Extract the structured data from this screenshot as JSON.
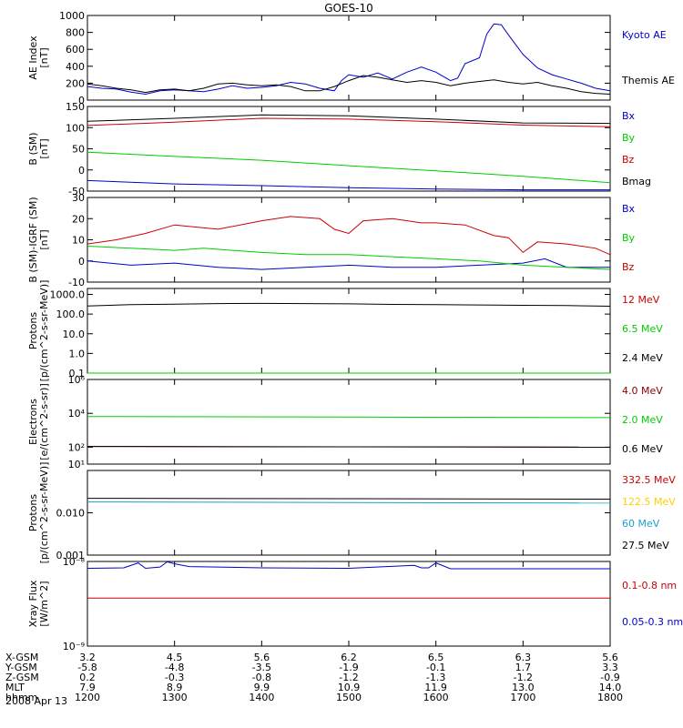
{
  "title": "GOES-10",
  "date_label": "2008 Apr 13",
  "chart_data": [
    {
      "type": "line",
      "ylabel": [
        "AE Index",
        "[nT]"
      ],
      "ylim": [
        0,
        1000
      ],
      "yticks": [
        0,
        200,
        400,
        600,
        800,
        1000
      ],
      "tick_labels": [
        "0",
        "200",
        "400",
        "600",
        "800",
        "1000"
      ],
      "series": [
        {
          "name": "Kyoto AE",
          "color": "#0000cc",
          "points": [
            [
              1200,
              160
            ],
            [
              1210,
              140
            ],
            [
              1220,
              130
            ],
            [
              1230,
              95
            ],
            [
              1240,
              70
            ],
            [
              1250,
              110
            ],
            [
              1300,
              120
            ],
            [
              1310,
              110
            ],
            [
              1320,
              100
            ],
            [
              1330,
              130
            ],
            [
              1340,
              170
            ],
            [
              1350,
              140
            ],
            [
              1400,
              150
            ],
            [
              1410,
              170
            ],
            [
              1420,
              210
            ],
            [
              1430,
              190
            ],
            [
              1440,
              140
            ],
            [
              1450,
              110
            ],
            [
              1455,
              230
            ],
            [
              1500,
              300
            ],
            [
              1510,
              270
            ],
            [
              1520,
              320
            ],
            [
              1530,
              250
            ],
            [
              1540,
              330
            ],
            [
              1550,
              390
            ],
            [
              1600,
              330
            ],
            [
              1610,
              230
            ],
            [
              1615,
              260
            ],
            [
              1620,
              430
            ],
            [
              1630,
              500
            ],
            [
              1635,
              780
            ],
            [
              1640,
              900
            ],
            [
              1645,
              890
            ],
            [
              1650,
              770
            ],
            [
              1700,
              540
            ],
            [
              1710,
              380
            ],
            [
              1720,
              300
            ],
            [
              1730,
              250
            ],
            [
              1740,
              200
            ],
            [
              1750,
              140
            ],
            [
              1800,
              110
            ]
          ]
        },
        {
          "name": "Themis AE",
          "color": "#000000",
          "points": [
            [
              1200,
              190
            ],
            [
              1210,
              170
            ],
            [
              1220,
              140
            ],
            [
              1230,
              120
            ],
            [
              1240,
              90
            ],
            [
              1250,
              120
            ],
            [
              1300,
              130
            ],
            [
              1310,
              110
            ],
            [
              1320,
              140
            ],
            [
              1330,
              190
            ],
            [
              1340,
              200
            ],
            [
              1350,
              180
            ],
            [
              1400,
              170
            ],
            [
              1410,
              180
            ],
            [
              1420,
              160
            ],
            [
              1430,
              110
            ],
            [
              1440,
              110
            ],
            [
              1450,
              160
            ],
            [
              1500,
              230
            ],
            [
              1510,
              290
            ],
            [
              1520,
              270
            ],
            [
              1530,
              240
            ],
            [
              1540,
              210
            ],
            [
              1550,
              230
            ],
            [
              1600,
              210
            ],
            [
              1610,
              170
            ],
            [
              1620,
              200
            ],
            [
              1630,
              220
            ],
            [
              1640,
              240
            ],
            [
              1650,
              210
            ],
            [
              1700,
              190
            ],
            [
              1710,
              210
            ],
            [
              1720,
              170
            ],
            [
              1730,
              140
            ],
            [
              1740,
              100
            ],
            [
              1750,
              80
            ],
            [
              1800,
              70
            ]
          ]
        }
      ]
    },
    {
      "type": "line",
      "ylabel": [
        "B (SM)",
        "[nT]"
      ],
      "ylim": [
        -50,
        150
      ],
      "yticks": [
        -50,
        0,
        50,
        100,
        150
      ],
      "tick_labels": [
        "-50",
        "0",
        "50",
        "100",
        "150"
      ],
      "series": [
        {
          "name": "Bx",
          "color": "#0000cc",
          "points": [
            [
              1200,
              -25
            ],
            [
              1300,
              -33
            ],
            [
              1400,
              -37
            ],
            [
              1500,
              -42
            ],
            [
              1600,
              -45
            ],
            [
              1700,
              -47
            ],
            [
              1800,
              -47
            ]
          ]
        },
        {
          "name": "By",
          "color": "#00cc00",
          "points": [
            [
              1200,
              42
            ],
            [
              1300,
              32
            ],
            [
              1400,
              23
            ],
            [
              1500,
              10
            ],
            [
              1600,
              -2
            ],
            [
              1700,
              -15
            ],
            [
              1800,
              -30
            ]
          ]
        },
        {
          "name": "Bz",
          "color": "#cc0000",
          "points": [
            [
              1200,
              105
            ],
            [
              1300,
              113
            ],
            [
              1400,
              122
            ],
            [
              1500,
              120
            ],
            [
              1600,
              114
            ],
            [
              1700,
              106
            ],
            [
              1800,
              102
            ]
          ]
        },
        {
          "name": "Bmag",
          "color": "#000000",
          "points": [
            [
              1200,
              115
            ],
            [
              1300,
              122
            ],
            [
              1400,
              130
            ],
            [
              1500,
              128
            ],
            [
              1600,
              120
            ],
            [
              1700,
              111
            ],
            [
              1800,
              110
            ]
          ]
        }
      ]
    },
    {
      "type": "line",
      "ylabel": [
        "B (SM)-IGRF (SM)",
        "[nT]"
      ],
      "ylim": [
        -10,
        30
      ],
      "yticks": [
        -10,
        0,
        10,
        20,
        30
      ],
      "tick_labels": [
        "-10",
        "0",
        "10",
        "20",
        "30"
      ],
      "series": [
        {
          "name": "Bx",
          "color": "#0000cc",
          "points": [
            [
              1200,
              0
            ],
            [
              1230,
              -2
            ],
            [
              1300,
              -1
            ],
            [
              1330,
              -3
            ],
            [
              1400,
              -4
            ],
            [
              1430,
              -3
            ],
            [
              1500,
              -2
            ],
            [
              1530,
              -3
            ],
            [
              1600,
              -3
            ],
            [
              1630,
              -2
            ],
            [
              1700,
              -1
            ],
            [
              1715,
              1
            ],
            [
              1730,
              -3
            ],
            [
              1800,
              -3
            ]
          ]
        },
        {
          "name": "By",
          "color": "#00cc00",
          "points": [
            [
              1200,
              7
            ],
            [
              1230,
              6
            ],
            [
              1300,
              5
            ],
            [
              1320,
              6
            ],
            [
              1340,
              5
            ],
            [
              1400,
              4
            ],
            [
              1430,
              3
            ],
            [
              1500,
              3
            ],
            [
              1530,
              2
            ],
            [
              1600,
              1
            ],
            [
              1630,
              0
            ],
            [
              1700,
              -2
            ],
            [
              1730,
              -3
            ],
            [
              1800,
              -4
            ]
          ]
        },
        {
          "name": "Bz",
          "color": "#cc0000",
          "points": [
            [
              1200,
              8
            ],
            [
              1220,
              10
            ],
            [
              1240,
              13
            ],
            [
              1300,
              17
            ],
            [
              1330,
              15
            ],
            [
              1400,
              19
            ],
            [
              1420,
              21
            ],
            [
              1440,
              20
            ],
            [
              1450,
              15
            ],
            [
              1500,
              13
            ],
            [
              1510,
              19
            ],
            [
              1530,
              20
            ],
            [
              1550,
              18
            ],
            [
              1600,
              18
            ],
            [
              1620,
              17
            ],
            [
              1640,
              12
            ],
            [
              1650,
              11
            ],
            [
              1700,
              4
            ],
            [
              1710,
              9
            ],
            [
              1730,
              8
            ],
            [
              1750,
              6
            ],
            [
              1800,
              3
            ]
          ]
        }
      ]
    },
    {
      "type": "line",
      "log": true,
      "ylabel": [
        "Protons",
        "[p/(cm^2-s-sr-MeV)]"
      ],
      "ylim": [
        0.1,
        2000
      ],
      "yticks": [
        0.1,
        1,
        10,
        100,
        1000
      ],
      "tick_labels": [
        "0.1",
        "1.0",
        "10.0",
        "100.0",
        "1000.0"
      ],
      "series": [
        {
          "name": "12 MeV",
          "color": "#cc0000",
          "points": [
            [
              1200,
              0.1
            ],
            [
              1800,
              0.1
            ]
          ]
        },
        {
          "name": "6.5 MeV",
          "color": "#00cc00",
          "points": [
            [
              1200,
              0.1
            ],
            [
              1800,
              0.1
            ]
          ]
        },
        {
          "name": "2.4 MeV",
          "color": "#000000",
          "points": [
            [
              1200,
              260
            ],
            [
              1230,
              300
            ],
            [
              1300,
              320
            ],
            [
              1330,
              340
            ],
            [
              1400,
              350
            ],
            [
              1430,
              340
            ],
            [
              1500,
              330
            ],
            [
              1530,
              310
            ],
            [
              1600,
              300
            ],
            [
              1630,
              290
            ],
            [
              1700,
              280
            ],
            [
              1730,
              270
            ],
            [
              1800,
              250
            ]
          ]
        }
      ]
    },
    {
      "type": "line",
      "log": true,
      "ylabel": [
        "Electrons",
        "[e/(cm^2-s-sr)]"
      ],
      "ylim": [
        10,
        1000000
      ],
      "yticks": [
        10,
        100,
        10000,
        1000000
      ],
      "tick_labels": [
        "10¹",
        "10²",
        "10⁴",
        "10⁶"
      ],
      "series": [
        {
          "name": "4.0 MeV",
          "color": "#8b0000",
          "points": [
            [
              1200,
              110
            ],
            [
              1800,
              100
            ]
          ]
        },
        {
          "name": "2.0 MeV",
          "color": "#00cc00",
          "points": [
            [
              1200,
              6500
            ],
            [
              1500,
              6000
            ],
            [
              1800,
              5600
            ]
          ]
        },
        {
          "name": "0.6 MeV",
          "color": "#000000",
          "points": [
            [
              1200,
              110
            ],
            [
              1800,
              100
            ]
          ]
        }
      ]
    },
    {
      "type": "line",
      "log": true,
      "ylabel": [
        "Protons",
        "[p/(cm^2-s-sr-MeV)]"
      ],
      "ylim": [
        0.001,
        0.1
      ],
      "yticks": [
        0.001,
        0.01
      ],
      "tick_labels": [
        "0.001",
        "0.010"
      ],
      "series": [
        {
          "name": "332.5 MeV",
          "color": "#cc0000",
          "points": []
        },
        {
          "name": "122.5 MeV",
          "color": "#ffd000",
          "points": []
        },
        {
          "name": "60 MeV",
          "color": "#1e9ed0",
          "points": [
            [
              1200,
              0.018
            ],
            [
              1800,
              0.017
            ]
          ]
        },
        {
          "name": "27.5 MeV",
          "color": "#000000",
          "points": [
            [
              1200,
              0.022
            ],
            [
              1800,
              0.021
            ]
          ]
        }
      ]
    },
    {
      "type": "line",
      "log": true,
      "ylabel": [
        "Xray Flux",
        "[W/m^2]"
      ],
      "ylim": [
        1e-09,
        1e-08
      ],
      "yticks": [
        1e-09,
        1e-08
      ],
      "tick_labels": [
        "10⁻⁹",
        "10⁻⁸"
      ],
      "series": [
        {
          "name": "0.1-0.8 nm",
          "color": "#cc0000",
          "points": [
            [
              1200,
              3.7e-09
            ],
            [
              1800,
              3.7e-09
            ]
          ]
        },
        {
          "name": "0.05-0.3 nm",
          "color": "#0000cc",
          "points": [
            [
              1200,
              8.3e-09
            ],
            [
              1225,
              8.4e-09
            ],
            [
              1235,
              9.6e-09
            ],
            [
              1240,
              8.3e-09
            ],
            [
              1250,
              8.6e-09
            ],
            [
              1255,
              9.9e-09
            ],
            [
              1300,
              9.4e-09
            ],
            [
              1310,
              8.7e-09
            ],
            [
              1400,
              8.4e-09
            ],
            [
              1500,
              8.3e-09
            ],
            [
              1545,
              9e-09
            ],
            [
              1550,
              8.4e-09
            ],
            [
              1555,
              8.4e-09
            ],
            [
              1600,
              9.6e-09
            ],
            [
              1610,
              8.2e-09
            ],
            [
              1700,
              8.2e-09
            ],
            [
              1800,
              8.2e-09
            ]
          ]
        }
      ]
    }
  ],
  "ephemeris": {
    "row_labels": [
      "X-GSM",
      "Y-GSM",
      "Z-GSM",
      "MLT",
      "hhmm"
    ],
    "columns": [
      {
        "x": 1200,
        "values": [
          "3.2",
          "-5.8",
          "0.2",
          "7.9",
          "1200"
        ]
      },
      {
        "x": 1300,
        "values": [
          "4.5",
          "-4.8",
          "-0.3",
          "8.9",
          "1300"
        ]
      },
      {
        "x": 1400,
        "values": [
          "5.6",
          "-3.5",
          "-0.8",
          "9.9",
          "1400"
        ]
      },
      {
        "x": 1500,
        "values": [
          "6.2",
          "-1.9",
          "-1.2",
          "10.9",
          "1500"
        ]
      },
      {
        "x": 1600,
        "values": [
          "6.5",
          "-0.1",
          "-1.3",
          "11.9",
          "1600"
        ]
      },
      {
        "x": 1700,
        "values": [
          "6.3",
          "1.7",
          "-1.2",
          "13.0",
          "1700"
        ]
      },
      {
        "x": 1800,
        "values": [
          "5.6",
          "3.3",
          "-0.9",
          "14.0",
          "1800"
        ]
      }
    ]
  }
}
